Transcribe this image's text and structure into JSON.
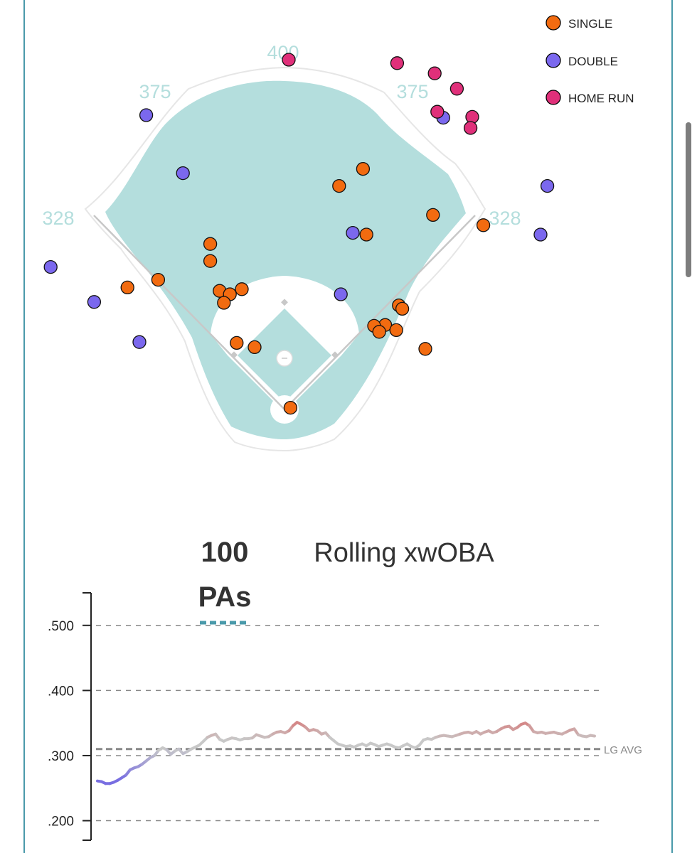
{
  "chart_data": [
    {
      "type": "scatter",
      "title": "",
      "distances": {
        "left_line": "328",
        "left_center": "375",
        "center": "400",
        "right_center": "375",
        "right_line": "328"
      },
      "legend": [
        {
          "name": "SINGLE",
          "color": "#f26b10"
        },
        {
          "name": "DOUBLE",
          "color": "#7b68ee"
        },
        {
          "name": "HOME RUN",
          "color": "#e0307a"
        }
      ],
      "units": "feet from home plate (spray chart)",
      "points": [
        {
          "type": "HOME RUN",
          "x": 5,
          "y": 410
        },
        {
          "type": "HOME RUN",
          "x": 132,
          "y": 406
        },
        {
          "type": "HOME RUN",
          "x": 176,
          "y": 394
        },
        {
          "type": "HOME RUN",
          "x": 202,
          "y": 376
        },
        {
          "type": "HOME RUN",
          "x": 179,
          "y": 349
        },
        {
          "type": "HOME RUN",
          "x": 220,
          "y": 343
        },
        {
          "type": "HOME RUN",
          "x": 218,
          "y": 330
        },
        {
          "type": "DOUBLE",
          "x": -162,
          "y": 345
        },
        {
          "type": "DOUBLE",
          "x": -119,
          "y": 277
        },
        {
          "type": "DOUBLE",
          "x": -344,
          "y": 219
        },
        {
          "type": "DOUBLE",
          "x": -274,
          "y": 167
        },
        {
          "type": "DOUBLE",
          "x": -223,
          "y": 126
        },
        {
          "type": "DOUBLE",
          "x": -170,
          "y": 79
        },
        {
          "type": "DOUBLE",
          "x": 80,
          "y": 207
        },
        {
          "type": "DOUBLE",
          "x": 66,
          "y": 135
        },
        {
          "type": "DOUBLE",
          "x": 186,
          "y": 342
        },
        {
          "type": "DOUBLE",
          "x": 308,
          "y": 262
        },
        {
          "type": "DOUBLE",
          "x": 300,
          "y": 205
        },
        {
          "type": "SINGLE",
          "x": 92,
          "y": 282
        },
        {
          "type": "SINGLE",
          "x": 64,
          "y": 262
        },
        {
          "type": "SINGLE",
          "x": 96,
          "y": 205
        },
        {
          "type": "SINGLE",
          "x": 174,
          "y": 228
        },
        {
          "type": "SINGLE",
          "x": 233,
          "y": 216
        },
        {
          "type": "SINGLE",
          "x": -87,
          "y": 194
        },
        {
          "type": "SINGLE",
          "x": -87,
          "y": 174
        },
        {
          "type": "SINGLE",
          "x": -148,
          "y": 152
        },
        {
          "type": "SINGLE",
          "x": -184,
          "y": 143
        },
        {
          "type": "SINGLE",
          "x": -76,
          "y": 139
        },
        {
          "type": "SINGLE",
          "x": -50,
          "y": 141
        },
        {
          "type": "SINGLE",
          "x": -64,
          "y": 135
        },
        {
          "type": "SINGLE",
          "x": -71,
          "y": 125
        },
        {
          "type": "SINGLE",
          "x": 134,
          "y": 122
        },
        {
          "type": "SINGLE",
          "x": 138,
          "y": 118
        },
        {
          "type": "SINGLE",
          "x": 118,
          "y": 99
        },
        {
          "type": "SINGLE",
          "x": 105,
          "y": 98
        },
        {
          "type": "SINGLE",
          "x": 111,
          "y": 91
        },
        {
          "type": "SINGLE",
          "x": 131,
          "y": 93
        },
        {
          "type": "SINGLE",
          "x": -56,
          "y": 78
        },
        {
          "type": "SINGLE",
          "x": -35,
          "y": 73
        },
        {
          "type": "SINGLE",
          "x": 165,
          "y": 71
        },
        {
          "type": "SINGLE",
          "x": 7,
          "y": 2
        }
      ]
    },
    {
      "type": "line",
      "title_number": "100",
      "title_unit": "PAs",
      "title": "Rolling xwOBA",
      "ylim": [
        0.17,
        0.55
      ],
      "yticks": [
        0.2,
        0.3,
        0.4,
        0.5
      ],
      "ytick_labels": [
        ".200",
        ".300",
        ".400",
        ".500"
      ],
      "league_avg": 0.31,
      "league_avg_label": "LG AVG",
      "grid": true,
      "values": [
        0.261,
        0.26,
        0.257,
        0.257,
        0.259,
        0.262,
        0.266,
        0.27,
        0.278,
        0.281,
        0.283,
        0.287,
        0.292,
        0.297,
        0.3,
        0.308,
        0.312,
        0.309,
        0.302,
        0.307,
        0.31,
        0.303,
        0.306,
        0.31,
        0.313,
        0.316,
        0.322,
        0.328,
        0.331,
        0.333,
        0.325,
        0.322,
        0.325,
        0.327,
        0.326,
        0.324,
        0.326,
        0.326,
        0.327,
        0.332,
        0.33,
        0.328,
        0.329,
        0.333,
        0.336,
        0.337,
        0.335,
        0.338,
        0.346,
        0.351,
        0.348,
        0.344,
        0.338,
        0.34,
        0.338,
        0.333,
        0.335,
        0.328,
        0.323,
        0.318,
        0.316,
        0.314,
        0.315,
        0.313,
        0.316,
        0.318,
        0.315,
        0.319,
        0.317,
        0.314,
        0.316,
        0.318,
        0.316,
        0.313,
        0.312,
        0.315,
        0.318,
        0.314,
        0.312,
        0.316,
        0.324,
        0.326,
        0.325,
        0.328,
        0.33,
        0.331,
        0.33,
        0.329,
        0.331,
        0.333,
        0.335,
        0.336,
        0.334,
        0.337,
        0.333,
        0.336,
        0.338,
        0.335,
        0.337,
        0.341,
        0.344,
        0.345,
        0.34,
        0.343,
        0.348,
        0.35,
        0.346,
        0.337,
        0.335,
        0.336,
        0.334,
        0.335,
        0.336,
        0.334,
        0.333,
        0.336,
        0.339,
        0.341,
        0.332,
        0.33,
        0.329,
        0.331,
        0.33
      ]
    }
  ]
}
